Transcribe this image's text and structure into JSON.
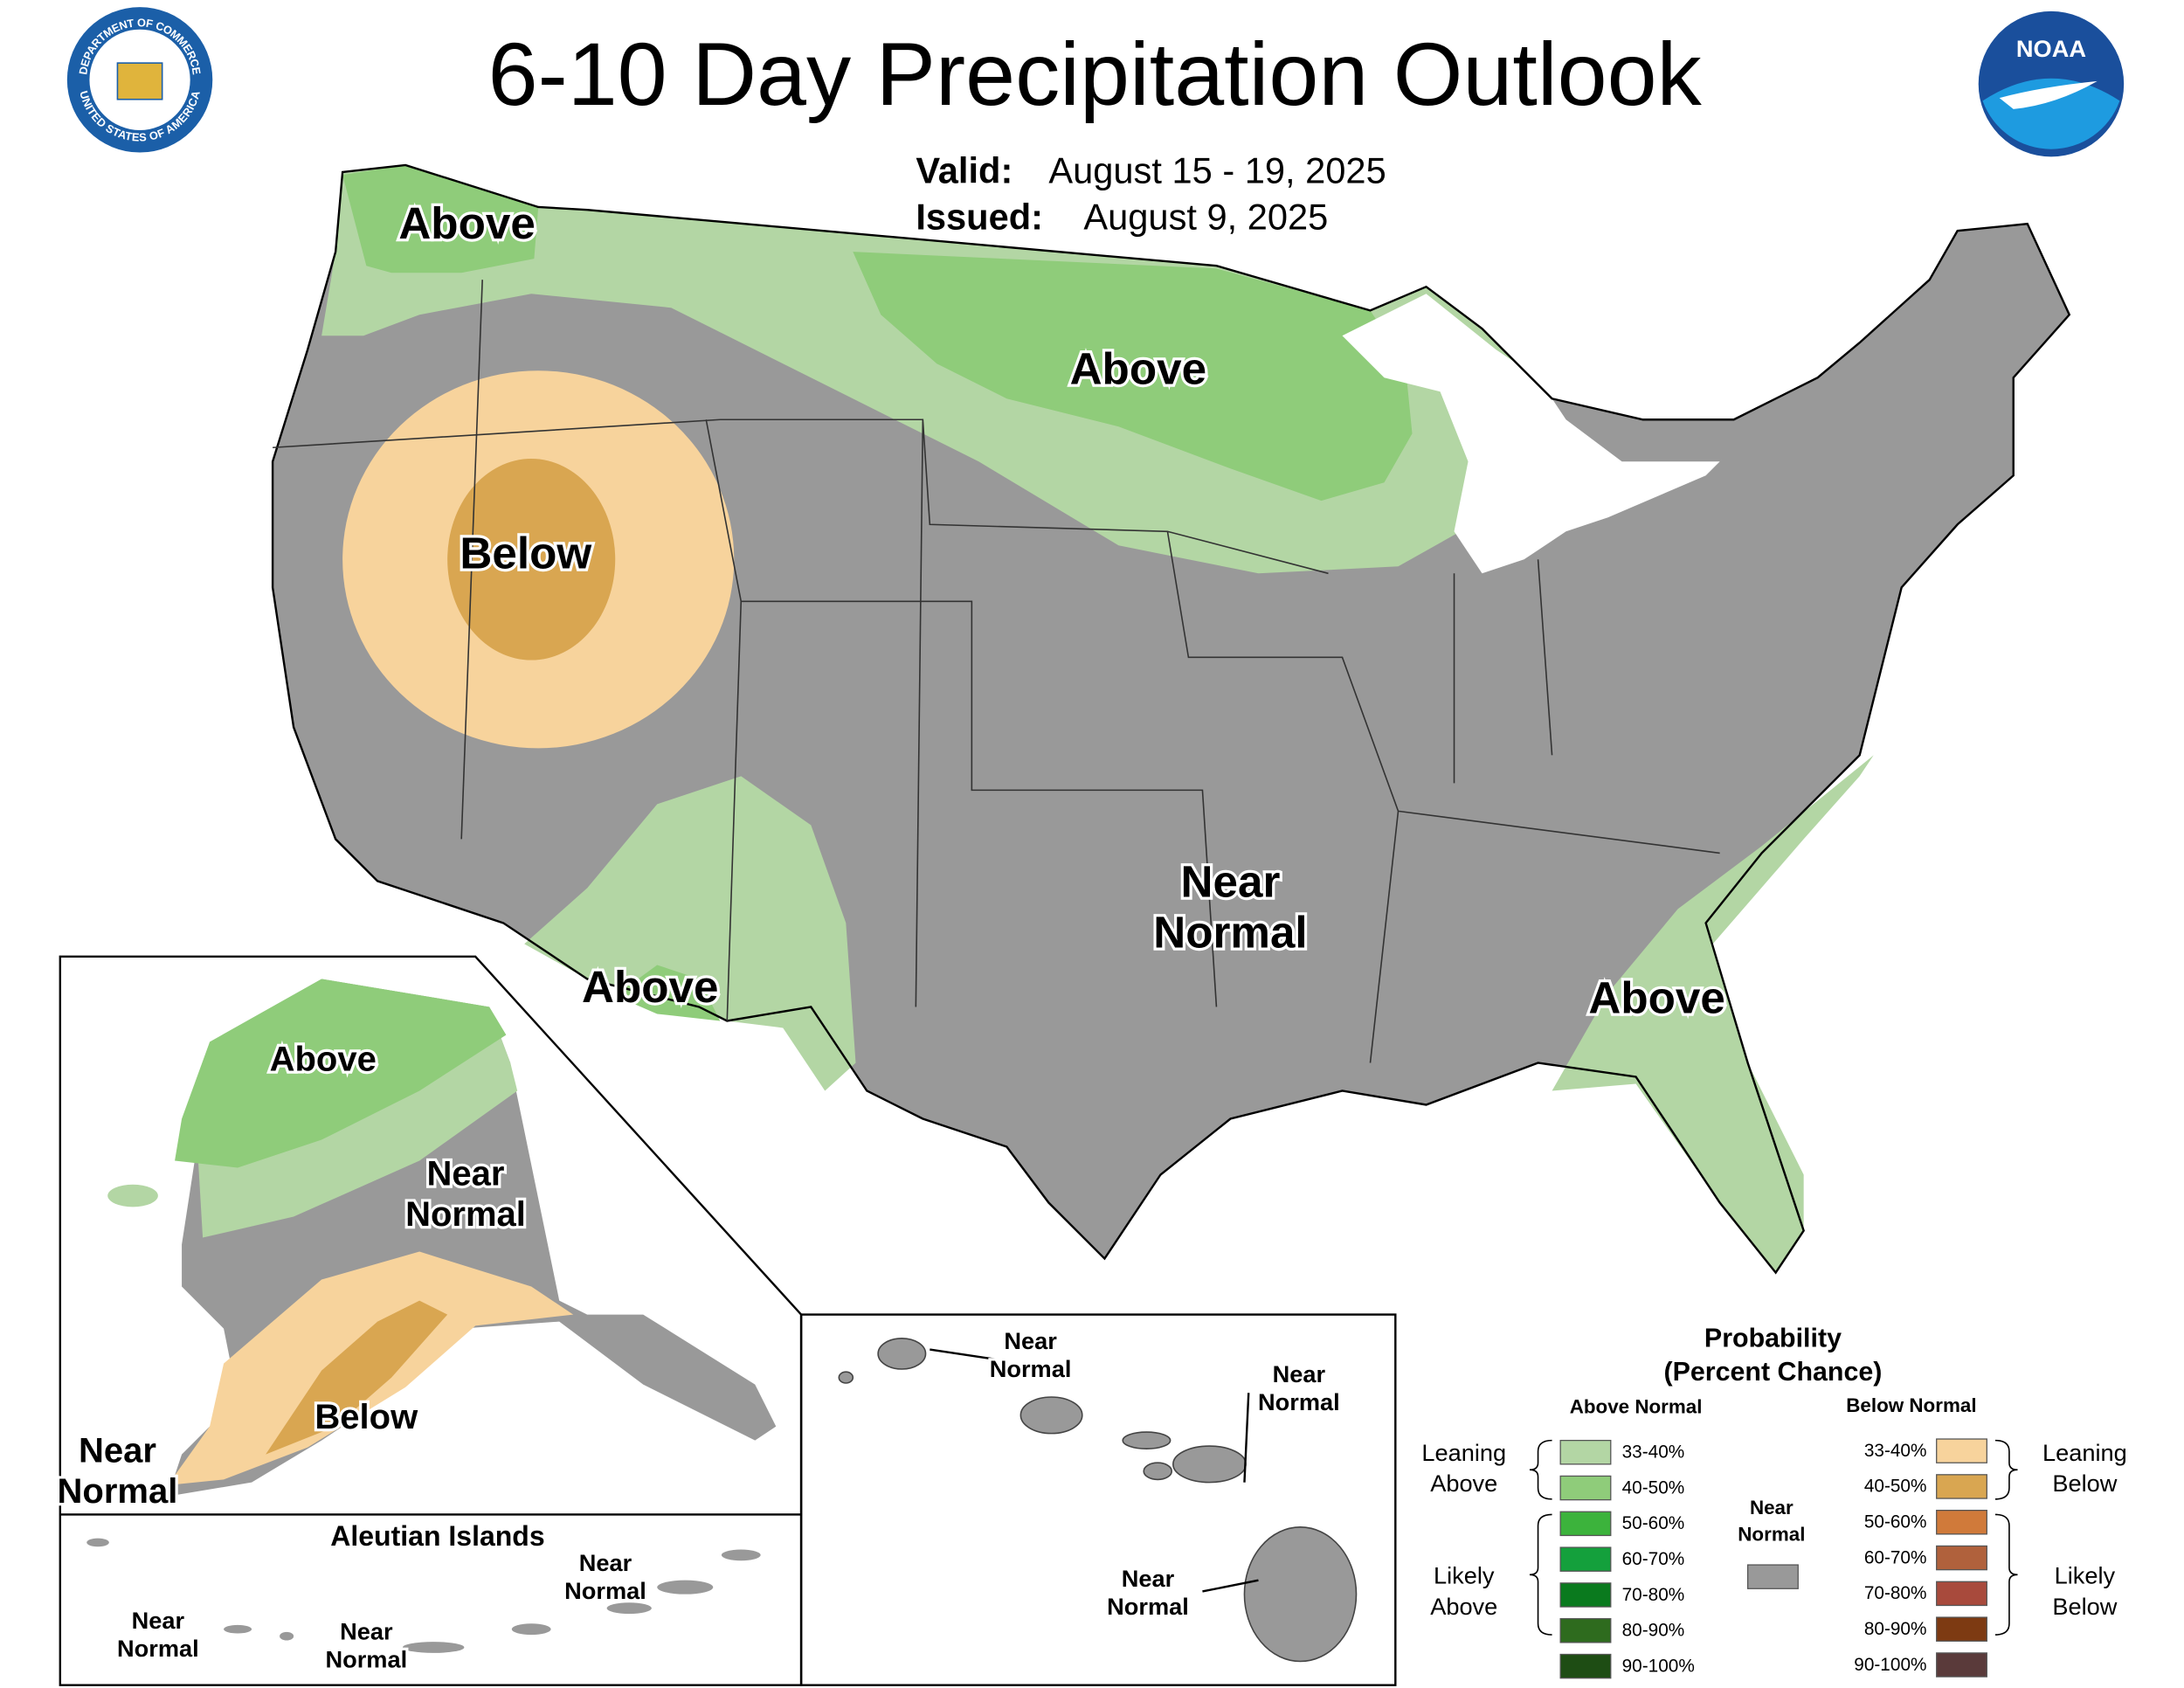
{
  "header": {
    "title": "6-10 Day Precipitation Outlook",
    "valid_label": "Valid:",
    "valid": "August 15 - 19, 2025",
    "issued_label": "Issued:",
    "issued": "August 9, 2025"
  },
  "logos": {
    "seal_top": "DEPARTMENT OF COMMERCE",
    "seal_bottom": "UNITED STATES OF AMERICA",
    "noaa": "NOAA"
  },
  "conus_labels": [
    {
      "lines": [
        "Above"
      ]
    },
    {
      "lines": [
        "Above"
      ]
    },
    {
      "lines": [
        "Below"
      ]
    },
    {
      "lines": [
        "Above"
      ]
    },
    {
      "lines": [
        "Near",
        "Normal"
      ]
    },
    {
      "lines": [
        "Above"
      ]
    }
  ],
  "alaska_labels": [
    {
      "lines": [
        "Above"
      ]
    },
    {
      "lines": [
        "Near",
        "Normal"
      ]
    },
    {
      "lines": [
        "Below"
      ]
    },
    {
      "lines": [
        "Near",
        "Normal"
      ]
    }
  ],
  "aleutian": {
    "title": "Aleutian Islands",
    "labels": [
      {
        "lines": [
          "Near",
          "Normal"
        ]
      },
      {
        "lines": [
          "Near",
          "Normal"
        ]
      },
      {
        "lines": [
          "Near",
          "Normal"
        ]
      }
    ]
  },
  "hawaii_labels": [
    {
      "lines": [
        "Near",
        "Normal"
      ]
    },
    {
      "lines": [
        "Near",
        "Normal"
      ]
    },
    {
      "lines": [
        "Near",
        "Normal"
      ]
    }
  ],
  "legend": {
    "title": "Probability",
    "subtitle": "(Percent Chance)",
    "above_header": "Above Normal",
    "below_header": "Below Normal",
    "near_lines": [
      "Near",
      "Normal"
    ],
    "near_color": "#999999",
    "above_bins": [
      {
        "label": "33-40%",
        "color": "#b3d6a4"
      },
      {
        "label": "40-50%",
        "color": "#8fcc7a"
      },
      {
        "label": "50-60%",
        "color": "#3cb33c"
      },
      {
        "label": "60-70%",
        "color": "#14a03c"
      },
      {
        "label": "70-80%",
        "color": "#0a7a1e"
      },
      {
        "label": "80-90%",
        "color": "#2e6b1e"
      },
      {
        "label": "90-100%",
        "color": "#1e4d14"
      }
    ],
    "below_bins": [
      {
        "label": "33-40%",
        "color": "#f7d39c"
      },
      {
        "label": "40-50%",
        "color": "#d9a651"
      },
      {
        "label": "50-60%",
        "color": "#d07a3a"
      },
      {
        "label": "60-70%",
        "color": "#b0613c"
      },
      {
        "label": "70-80%",
        "color": "#a84a3c"
      },
      {
        "label": "80-90%",
        "color": "#7d3a12"
      },
      {
        "label": "90-100%",
        "color": "#5a3a3a"
      }
    ],
    "groups": {
      "leaning_above": [
        "Leaning",
        "Above"
      ],
      "likely_above": [
        "Likely",
        "Above"
      ],
      "leaning_below": [
        "Leaning",
        "Below"
      ],
      "likely_below": [
        "Likely",
        "Below"
      ]
    }
  }
}
